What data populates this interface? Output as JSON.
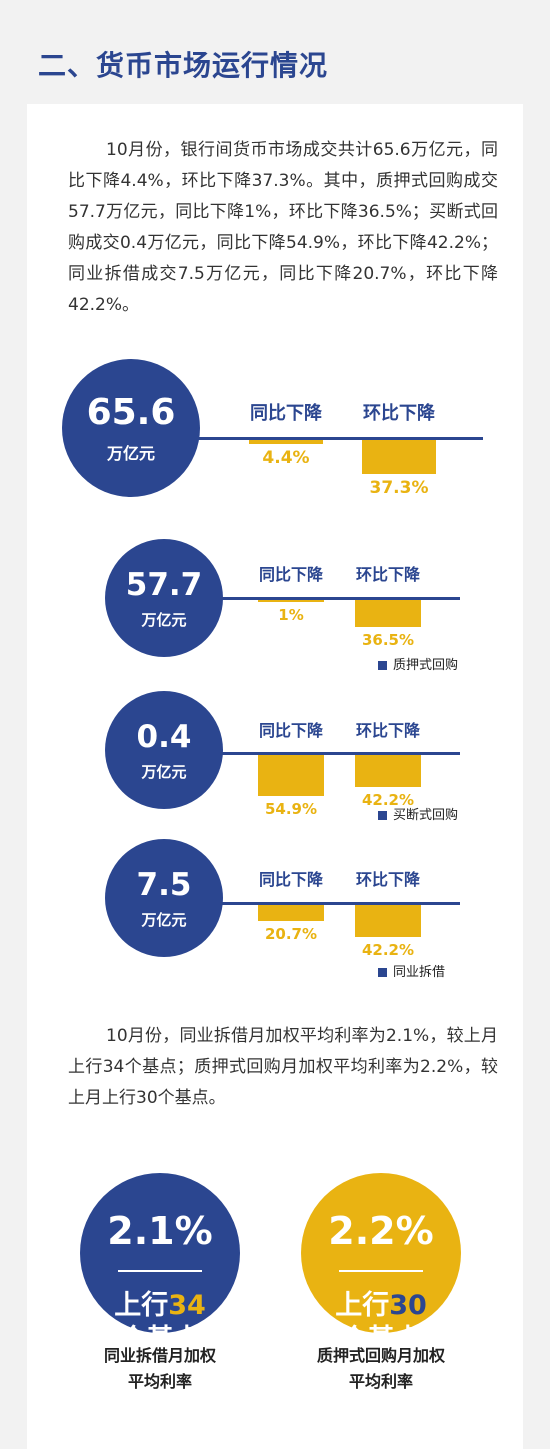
{
  "section_title": "二、货币市场运行情况",
  "paragraph1": "10月份，银行间货币市场成交共计65.6万亿元，同比下降4.4%，环比下降37.3%。其中，质押式回购成交57.7万亿元，同比下降1%，环比下降36.5%；买断式回购成交0.4万亿元，同比下降54.9%，环比下降42.2%；同业拆借成交7.5万亿元，同比下降20.7%，环比下降42.2%。",
  "paragraph2": "10月份，同业拆借月加权平均利率为2.1%，较上月上行34个基点；质押式回购月加权平均利率为2.2%，较上月上行30个基点。",
  "colors": {
    "primary": "#2b4690",
    "accent": "#e9b312"
  },
  "chart_data": [
    {
      "type": "bar",
      "unit": "万亿元",
      "total": "65.6",
      "legend": "",
      "categories": [
        "同比下降",
        "环比下降"
      ],
      "values": [
        4.4,
        37.3
      ],
      "labels": [
        "4.4%",
        "37.3%"
      ]
    },
    {
      "type": "bar",
      "unit": "万亿元",
      "total": "57.7",
      "legend": "质押式回购",
      "categories": [
        "同比下降",
        "环比下降"
      ],
      "values": [
        1,
        36.5
      ],
      "labels": [
        "1%",
        "36.5%"
      ]
    },
    {
      "type": "bar",
      "unit": "万亿元",
      "total": "0.4",
      "legend": "买断式回购",
      "categories": [
        "同比下降",
        "环比下降"
      ],
      "values": [
        54.9,
        42.2
      ],
      "labels": [
        "54.9%",
        "42.2%"
      ]
    },
    {
      "type": "bar",
      "unit": "万亿元",
      "total": "7.5",
      "legend": "同业拆借",
      "categories": [
        "同比下降",
        "环比下降"
      ],
      "values": [
        20.7,
        42.2
      ],
      "labels": [
        "20.7%",
        "42.2%"
      ]
    }
  ],
  "rates": [
    {
      "rate": "2.1%",
      "prefix": "上行",
      "bp": "34",
      "suffix": "个基点",
      "caption1": "同业拆借月加权",
      "caption2": "平均利率",
      "bg": "#2b4690",
      "bp_color": "#e9b312"
    },
    {
      "rate": "2.2%",
      "prefix": "上行",
      "bp": "30",
      "suffix": "个基点",
      "caption1": "质押式回购月加权",
      "caption2": "平均利率",
      "bg": "#e9b312",
      "bp_color": "#2b4690"
    }
  ]
}
